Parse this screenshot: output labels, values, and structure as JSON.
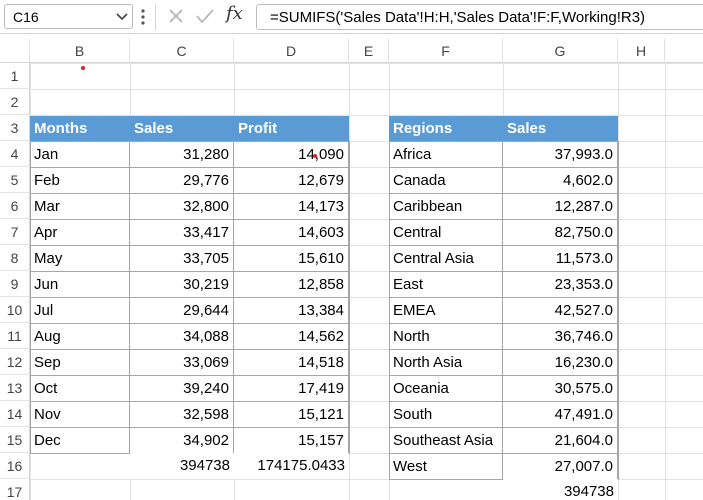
{
  "formula_bar": {
    "name_box": "C16",
    "fx": "fx",
    "formula": "=SUMIFS('Sales Data'!H:H,'Sales Data'!F:F,Working!R3)"
  },
  "columns": [
    "B",
    "C",
    "D",
    "E",
    "F",
    "G",
    "H"
  ],
  "rows": [
    "1",
    "2",
    "3",
    "4",
    "5",
    "6",
    "7",
    "8",
    "9",
    "10",
    "11",
    "12",
    "13",
    "14",
    "15",
    "16",
    "17"
  ],
  "months_table": {
    "headers": [
      "Months",
      "Sales",
      "Profit"
    ],
    "rows": [
      [
        "Jan",
        "31,280",
        "14,090"
      ],
      [
        "Feb",
        "29,776",
        "12,679"
      ],
      [
        "Mar",
        "32,800",
        "14,173"
      ],
      [
        "Apr",
        "33,417",
        "14,603"
      ],
      [
        "May",
        "33,705",
        "15,610"
      ],
      [
        "Jun",
        "30,219",
        "12,858"
      ],
      [
        "Jul",
        "29,644",
        "13,384"
      ],
      [
        "Aug",
        "34,088",
        "14,562"
      ],
      [
        "Sep",
        "33,069",
        "14,518"
      ],
      [
        "Oct",
        "39,240",
        "17,419"
      ],
      [
        "Nov",
        "32,598",
        "15,121"
      ],
      [
        "Dec",
        "34,902",
        "15,157"
      ]
    ],
    "total_sales": "394738",
    "total_profit": "174175.0433"
  },
  "regions_table": {
    "headers": [
      "Regions",
      "Sales"
    ],
    "rows": [
      [
        "Africa",
        "37,993.0"
      ],
      [
        "Canada",
        "4,602.0"
      ],
      [
        "Caribbean",
        "12,287.0"
      ],
      [
        "Central",
        "82,750.0"
      ],
      [
        "Central Asia",
        "11,573.0"
      ],
      [
        "East",
        "23,353.0"
      ],
      [
        "EMEA",
        "42,527.0"
      ],
      [
        "North",
        "36,746.0"
      ],
      [
        "North Asia",
        "16,230.0"
      ],
      [
        "Oceania",
        "30,575.0"
      ],
      [
        "South",
        "47,491.0"
      ],
      [
        "Southeast Asia",
        "21,604.0"
      ],
      [
        "West",
        "27,007.0"
      ]
    ],
    "total_sales": "394738"
  },
  "colors": {
    "header_fill": "#5b9bd5",
    "header_text": "#ffffff",
    "comment_marker": "#e02020"
  }
}
